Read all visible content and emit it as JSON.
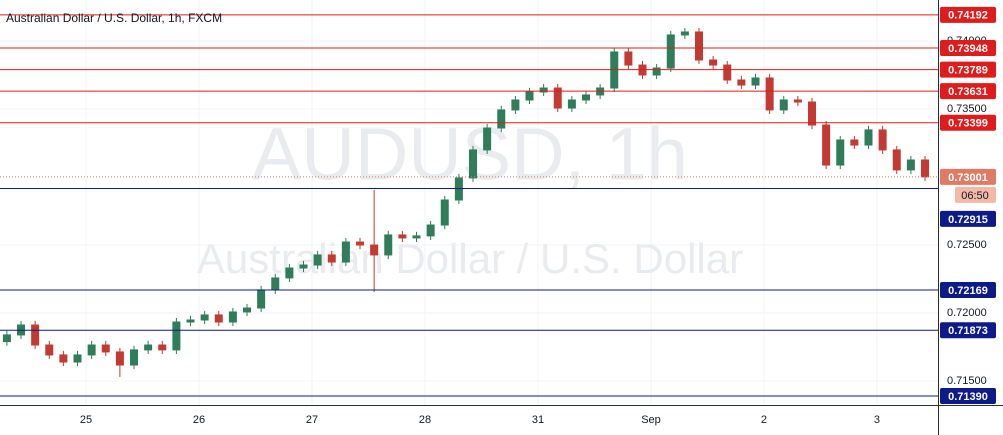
{
  "chart_data": {
    "type": "candlestick",
    "title": "Australian Dollar / U.S. Dollar, 1h, FXCM",
    "watermark": "AUDUSD, 1h",
    "watermark_subtitle": "Australian Dollar / U.S. Dollar",
    "up_color": "#2f7d5b",
    "down_color": "#c23b32",
    "grid": true,
    "x": [
      -0.7,
      -0.575,
      -0.45,
      -0.325,
      -0.2,
      -0.075,
      0.05,
      0.175,
      0.3,
      0.425,
      0.55,
      0.675,
      0.8,
      0.925,
      1.05,
      1.175,
      1.3,
      1.425,
      1.55,
      1.675,
      1.8,
      1.925,
      2.05,
      2.175,
      2.3,
      2.425,
      2.55,
      2.675,
      2.8,
      2.925,
      3.05,
      3.175,
      3.3,
      3.425,
      3.55,
      3.675,
      3.8,
      3.925,
      4.05,
      4.175,
      4.3,
      4.425,
      4.55,
      4.675,
      4.8,
      4.925,
      5.05,
      5.175,
      5.3,
      5.425,
      5.55,
      5.675,
      5.8,
      5.925,
      6.05,
      6.175,
      6.3,
      6.425,
      6.55,
      6.675,
      6.8,
      6.925,
      7.05,
      7.175,
      7.3,
      7.425
    ],
    "open": [
      0.7179,
      0.71839,
      0.71912,
      0.71765,
      0.71692,
      0.7164,
      0.71692,
      0.71765,
      0.71714,
      0.71618,
      0.71729,
      0.71765,
      0.71729,
      0.71934,
      0.71949,
      0.71986,
      0.71934,
      0.72008,
      0.72037,
      0.7217,
      0.72258,
      0.72331,
      0.72353,
      0.72427,
      0.72375,
      0.72522,
      0.725,
      0.72427,
      0.72574,
      0.72552,
      0.72567,
      0.72647,
      0.72831,
      0.72993,
      0.73199,
      0.7336,
      0.73493,
      0.73566,
      0.73625,
      0.73654,
      0.73507,
      0.73566,
      0.73603,
      0.73654,
      0.73919,
      0.73823,
      0.7375,
      0.73801,
      0.74044,
      0.74066,
      0.7386,
      0.73823,
      0.73713,
      0.73676,
      0.73728,
      0.73493,
      0.73566,
      0.73551,
      0.73382,
      0.73088,
      0.73272,
      0.73235,
      0.73346,
      0.73199,
      0.73052,
      0.73125
    ],
    "high": [
      0.71869,
      0.71942,
      0.71942,
      0.71795,
      0.71722,
      0.71722,
      0.71795,
      0.71795,
      0.71744,
      0.71759,
      0.71795,
      0.71795,
      0.71964,
      0.71979,
      0.72016,
      0.72016,
      0.72038,
      0.72067,
      0.722,
      0.72288,
      0.72361,
      0.72383,
      0.72457,
      0.72457,
      0.72552,
      0.72552,
      0.72905,
      0.72604,
      0.72604,
      0.72597,
      0.72677,
      0.72861,
      0.73023,
      0.73229,
      0.7339,
      0.73523,
      0.73596,
      0.73655,
      0.73684,
      0.73684,
      0.73596,
      0.73633,
      0.73684,
      0.73949,
      0.73949,
      0.73853,
      0.73831,
      0.74074,
      0.74096,
      0.74096,
      0.7389,
      0.73853,
      0.73743,
      0.73758,
      0.73758,
      0.73596,
      0.73596,
      0.73581,
      0.73412,
      0.73302,
      0.73302,
      0.73376,
      0.73376,
      0.73229,
      0.73155,
      0.73155
    ],
    "low": [
      0.7176,
      0.71809,
      0.71735,
      0.71662,
      0.7161,
      0.7161,
      0.71662,
      0.71684,
      0.7153,
      0.71588,
      0.71699,
      0.71699,
      0.71699,
      0.71904,
      0.71919,
      0.71904,
      0.71904,
      0.71978,
      0.72007,
      0.7214,
      0.72228,
      0.72301,
      0.72323,
      0.72345,
      0.72345,
      0.7247,
      0.72155,
      0.72397,
      0.72522,
      0.72522,
      0.72537,
      0.72617,
      0.72801,
      0.72963,
      0.73169,
      0.7333,
      0.73463,
      0.73536,
      0.73595,
      0.73477,
      0.73477,
      0.73536,
      0.73573,
      0.73624,
      0.73793,
      0.7372,
      0.7372,
      0.73771,
      0.74014,
      0.7383,
      0.73793,
      0.73683,
      0.73646,
      0.73646,
      0.73463,
      0.73463,
      0.73521,
      0.73352,
      0.73058,
      0.73058,
      0.73205,
      0.73205,
      0.73169,
      0.73022,
      0.73022,
      0.72971
    ],
    "close": [
      0.71839,
      0.71912,
      0.71765,
      0.71692,
      0.7164,
      0.71692,
      0.71765,
      0.71714,
      0.71618,
      0.71729,
      0.71765,
      0.71729,
      0.71934,
      0.71949,
      0.71986,
      0.71934,
      0.72008,
      0.72037,
      0.7217,
      0.72258,
      0.72331,
      0.72353,
      0.72427,
      0.72375,
      0.72522,
      0.725,
      0.72427,
      0.72574,
      0.72552,
      0.72567,
      0.72647,
      0.72831,
      0.72993,
      0.73199,
      0.7336,
      0.73493,
      0.73566,
      0.73625,
      0.73654,
      0.73507,
      0.73566,
      0.73603,
      0.73654,
      0.73919,
      0.73823,
      0.7375,
      0.73801,
      0.74044,
      0.74066,
      0.7386,
      0.73823,
      0.73713,
      0.73676,
      0.73728,
      0.73493,
      0.73566,
      0.73551,
      0.73382,
      0.73088,
      0.73272,
      0.73235,
      0.73346,
      0.73199,
      0.73052,
      0.73125,
      0.73001
    ],
    "last_time": "06:50",
    "last_color": "#e07a63",
    "levels": [
      {
        "color": "#e01b1b",
        "values": [
          0.74192,
          0.73948,
          0.73789,
          0.73631,
          0.73399
        ],
        "value_labels": [
          "0.74192",
          "0.73948",
          "0.73789",
          "0.73631",
          "0.73399"
        ]
      },
      {
        "color": "#0c1a8a",
        "values": [
          0.72915,
          0.72169,
          0.71873,
          0.7139
        ],
        "value_labels": [
          "0.72915",
          "0.72169",
          "0.71873",
          "0.71390"
        ]
      }
    ],
    "xlim": [
      -0.761,
      7.54
    ],
    "xticks": [
      {
        "value": 0,
        "label": "25"
      },
      {
        "value": 1,
        "label": "26"
      },
      {
        "value": 2,
        "label": "27"
      },
      {
        "value": 3,
        "label": "28"
      },
      {
        "value": 4,
        "label": "31"
      },
      {
        "value": 5,
        "label": "Sep"
      },
      {
        "value": 6,
        "label": "2"
      },
      {
        "value": 7,
        "label": "3"
      }
    ],
    "ylim": [
      0.71324,
      0.74301
    ],
    "yticks": [
      {
        "value": 0.74,
        "label": "0.74000"
      },
      {
        "value": 0.735,
        "label": "0.73500"
      },
      {
        "value": 0.725,
        "label": "0.72500"
      },
      {
        "value": 0.72,
        "label": "0.72000"
      },
      {
        "value": 0.715,
        "label": "0.71500"
      }
    ]
  }
}
